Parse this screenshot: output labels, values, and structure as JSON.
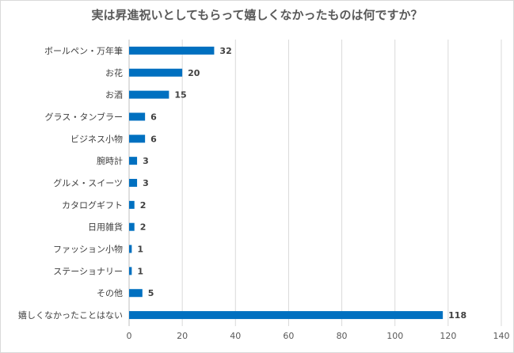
{
  "chart_data": {
    "type": "bar",
    "orientation": "horizontal",
    "title": "実は昇進祝いとしてもらって嬉しくなかったものは何ですか？",
    "categories": [
      "ボールペン・万年筆",
      "お花",
      "お酒",
      "グラス・タンブラー",
      "ビジネス小物",
      "腕時計",
      "グルメ・スイーツ",
      "カタログギフト",
      "日用雑貨",
      "ファッション小物",
      "ステーショナリー",
      "その他",
      "嬉しくなかったことはない"
    ],
    "values": [
      32,
      20,
      15,
      6,
      6,
      3,
      3,
      2,
      2,
      1,
      1,
      5,
      118
    ],
    "value_labels": [
      "32",
      "20",
      "15",
      "6",
      "6",
      "3",
      "3",
      "2",
      "2",
      "1",
      "1",
      "5",
      "118"
    ],
    "xlim": [
      0,
      140
    ],
    "xticks": [
      0,
      20,
      40,
      60,
      80,
      100,
      120,
      140
    ],
    "xtick_labels": [
      "0",
      "20",
      "40",
      "60",
      "80",
      "100",
      "120",
      "140"
    ],
    "xlabel": "",
    "ylabel": "",
    "grid": true,
    "legend": "none",
    "bar_color": "#0070c0"
  }
}
